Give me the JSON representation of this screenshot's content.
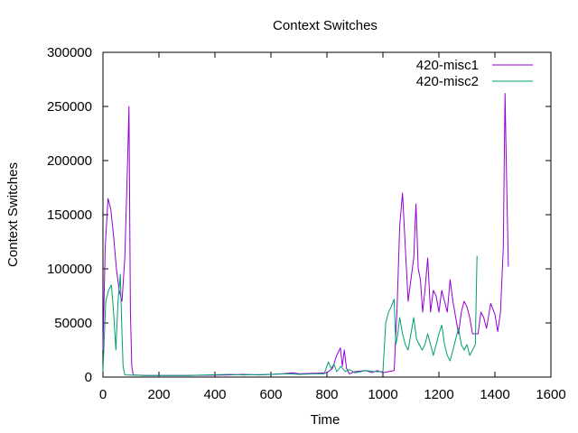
{
  "chart_data": {
    "type": "line",
    "title": "Context Switches",
    "xlabel": "Time",
    "ylabel": "Context Switches",
    "xlim": [
      0,
      1600
    ],
    "ylim": [
      0,
      300000
    ],
    "x_ticks": [
      0,
      200,
      400,
      600,
      800,
      1000,
      1200,
      1400,
      1600
    ],
    "y_ticks": [
      0,
      50000,
      100000,
      150000,
      200000,
      250000,
      300000
    ],
    "grid": false,
    "legend": "top-right",
    "series": [
      {
        "name": "420-misc1",
        "color": "#9400d3",
        "points": [
          [
            0,
            25000
          ],
          [
            8,
            120000
          ],
          [
            18,
            165000
          ],
          [
            28,
            155000
          ],
          [
            38,
            130000
          ],
          [
            48,
            100000
          ],
          [
            58,
            80000
          ],
          [
            68,
            70000
          ],
          [
            78,
            110000
          ],
          [
            88,
            200000
          ],
          [
            93,
            250000
          ],
          [
            98,
            60000
          ],
          [
            103,
            10000
          ],
          [
            108,
            2000
          ],
          [
            150,
            1500
          ],
          [
            300,
            1500
          ],
          [
            450,
            2000
          ],
          [
            500,
            2500
          ],
          [
            560,
            2000
          ],
          [
            600,
            2500
          ],
          [
            640,
            3000
          ],
          [
            680,
            4000
          ],
          [
            700,
            3000
          ],
          [
            760,
            3500
          ],
          [
            800,
            4000
          ],
          [
            820,
            8000
          ],
          [
            835,
            20000
          ],
          [
            848,
            27000
          ],
          [
            855,
            10000
          ],
          [
            862,
            25000
          ],
          [
            870,
            8000
          ],
          [
            880,
            3000
          ],
          [
            900,
            5000
          ],
          [
            940,
            6000
          ],
          [
            960,
            4000
          ],
          [
            980,
            6000
          ],
          [
            1000,
            4000
          ],
          [
            1020,
            5000
          ],
          [
            1040,
            6000
          ],
          [
            1050,
            60000
          ],
          [
            1060,
            140000
          ],
          [
            1070,
            170000
          ],
          [
            1080,
            120000
          ],
          [
            1090,
            70000
          ],
          [
            1100,
            90000
          ],
          [
            1110,
            110000
          ],
          [
            1118,
            160000
          ],
          [
            1126,
            100000
          ],
          [
            1134,
            90000
          ],
          [
            1142,
            60000
          ],
          [
            1150,
            80000
          ],
          [
            1160,
            110000
          ],
          [
            1170,
            60000
          ],
          [
            1180,
            80000
          ],
          [
            1190,
            75000
          ],
          [
            1200,
            60000
          ],
          [
            1210,
            80000
          ],
          [
            1220,
            70000
          ],
          [
            1230,
            60000
          ],
          [
            1240,
            90000
          ],
          [
            1250,
            70000
          ],
          [
            1260,
            55000
          ],
          [
            1270,
            40000
          ],
          [
            1280,
            60000
          ],
          [
            1290,
            70000
          ],
          [
            1300,
            65000
          ],
          [
            1310,
            55000
          ],
          [
            1320,
            40000
          ],
          [
            1340,
            40000
          ],
          [
            1350,
            60000
          ],
          [
            1360,
            55000
          ],
          [
            1370,
            45000
          ],
          [
            1385,
            68000
          ],
          [
            1400,
            58000
          ],
          [
            1410,
            42000
          ],
          [
            1420,
            60000
          ],
          [
            1430,
            120000
          ],
          [
            1436,
            262000
          ],
          [
            1442,
            180000
          ],
          [
            1448,
            102000
          ]
        ]
      },
      {
        "name": "420-misc2",
        "color": "#009e73",
        "points": [
          [
            0,
            5000
          ],
          [
            10,
            70000
          ],
          [
            20,
            80000
          ],
          [
            30,
            85000
          ],
          [
            38,
            60000
          ],
          [
            46,
            25000
          ],
          [
            54,
            70000
          ],
          [
            62,
            95000
          ],
          [
            68,
            40000
          ],
          [
            72,
            10000
          ],
          [
            78,
            2000
          ],
          [
            150,
            1500
          ],
          [
            300,
            1500
          ],
          [
            450,
            2500
          ],
          [
            500,
            2000
          ],
          [
            600,
            2500
          ],
          [
            660,
            3000
          ],
          [
            700,
            2500
          ],
          [
            760,
            3000
          ],
          [
            790,
            3000
          ],
          [
            805,
            14000
          ],
          [
            815,
            8000
          ],
          [
            825,
            12000
          ],
          [
            835,
            5000
          ],
          [
            850,
            10000
          ],
          [
            865,
            5000
          ],
          [
            880,
            7000
          ],
          [
            900,
            4000
          ],
          [
            940,
            6000
          ],
          [
            970,
            5000
          ],
          [
            1000,
            5000
          ],
          [
            1010,
            50000
          ],
          [
            1020,
            60000
          ],
          [
            1030,
            65000
          ],
          [
            1040,
            72000
          ],
          [
            1046,
            30000
          ],
          [
            1052,
            38000
          ],
          [
            1060,
            55000
          ],
          [
            1070,
            40000
          ],
          [
            1080,
            30000
          ],
          [
            1090,
            25000
          ],
          [
            1100,
            40000
          ],
          [
            1110,
            55000
          ],
          [
            1120,
            35000
          ],
          [
            1130,
            30000
          ],
          [
            1140,
            25000
          ],
          [
            1150,
            30000
          ],
          [
            1160,
            40000
          ],
          [
            1170,
            30000
          ],
          [
            1180,
            20000
          ],
          [
            1190,
            30000
          ],
          [
            1200,
            40000
          ],
          [
            1210,
            48000
          ],
          [
            1220,
            30000
          ],
          [
            1230,
            20000
          ],
          [
            1240,
            15000
          ],
          [
            1250,
            25000
          ],
          [
            1260,
            35000
          ],
          [
            1270,
            45000
          ],
          [
            1280,
            30000
          ],
          [
            1290,
            25000
          ],
          [
            1300,
            30000
          ],
          [
            1310,
            20000
          ],
          [
            1320,
            25000
          ],
          [
            1330,
            30000
          ],
          [
            1336,
            112000
          ]
        ]
      }
    ]
  }
}
